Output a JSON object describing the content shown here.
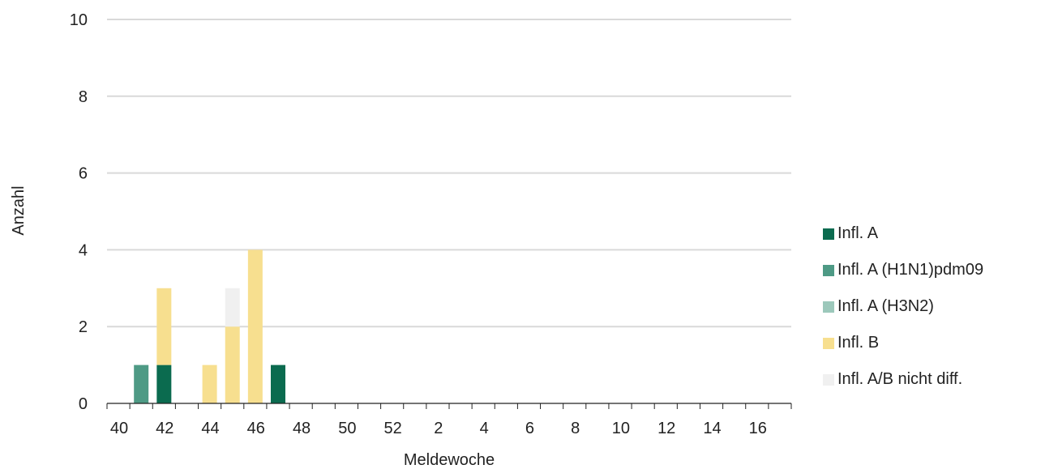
{
  "chart_data": {
    "type": "bar",
    "stacked": true,
    "xlabel": "Meldewoche",
    "ylabel": "Anzahl",
    "ylim": [
      0,
      10
    ],
    "yticks": [
      "0",
      "2",
      "4",
      "6",
      "8",
      "10"
    ],
    "grid": true,
    "legend_position": "right",
    "categories": [
      "40",
      "41",
      "42",
      "43",
      "44",
      "45",
      "46",
      "47",
      "48",
      "49",
      "50",
      "51",
      "52",
      "1",
      "2",
      "3",
      "4",
      "5",
      "6",
      "7",
      "8",
      "9",
      "10",
      "11",
      "12",
      "13",
      "14",
      "15",
      "16",
      "17"
    ],
    "tick_labels": [
      "40",
      "42",
      "44",
      "46",
      "48",
      "50",
      "52",
      "2",
      "4",
      "6",
      "8",
      "10",
      "12",
      "14",
      "16"
    ],
    "series": [
      {
        "name": "Infl. A",
        "color": "#0b6b4f",
        "values": [
          0,
          0,
          1,
          0,
          0,
          0,
          0,
          1,
          0,
          0,
          0,
          0,
          0,
          0,
          0,
          0,
          0,
          0,
          0,
          0,
          0,
          0,
          0,
          0,
          0,
          0,
          0,
          0,
          0,
          0
        ]
      },
      {
        "name": "Infl. A (H1N1)pdm09",
        "color": "#4e9a85",
        "values": [
          0,
          1,
          0,
          0,
          0,
          0,
          0,
          0,
          0,
          0,
          0,
          0,
          0,
          0,
          0,
          0,
          0,
          0,
          0,
          0,
          0,
          0,
          0,
          0,
          0,
          0,
          0,
          0,
          0,
          0
        ]
      },
      {
        "name": "Infl. A (H3N2)",
        "color": "#9cc8bb",
        "values": [
          0,
          0,
          0,
          0,
          0,
          0,
          0,
          0,
          0,
          0,
          0,
          0,
          0,
          0,
          0,
          0,
          0,
          0,
          0,
          0,
          0,
          0,
          0,
          0,
          0,
          0,
          0,
          0,
          0,
          0
        ]
      },
      {
        "name": "Infl. B",
        "color": "#f7df8f",
        "values": [
          0,
          0,
          2,
          0,
          1,
          2,
          4,
          0,
          0,
          0,
          0,
          0,
          0,
          0,
          0,
          0,
          0,
          0,
          0,
          0,
          0,
          0,
          0,
          0,
          0,
          0,
          0,
          0,
          0,
          0
        ]
      },
      {
        "name": "Infl. A/B nicht diff.",
        "color": "#f0f0f0",
        "values": [
          0,
          0,
          0,
          0,
          0,
          1,
          0,
          0,
          0,
          0,
          0,
          0,
          0,
          0,
          0,
          0,
          0,
          0,
          0,
          0,
          0,
          0,
          0,
          0,
          0,
          0,
          0,
          0,
          0,
          0
        ]
      }
    ]
  }
}
